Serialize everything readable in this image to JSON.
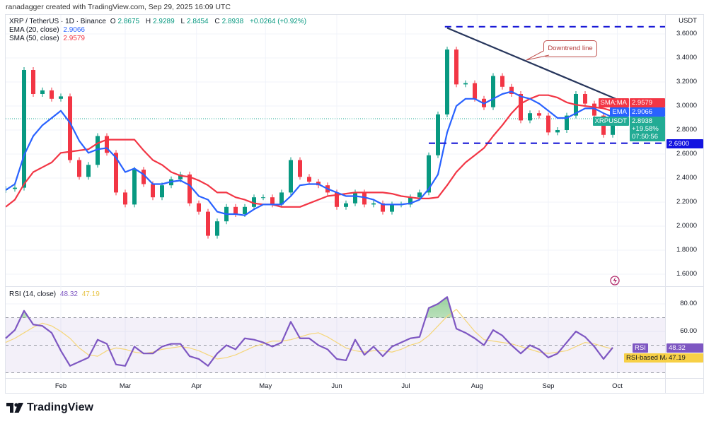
{
  "credit": "ranadagger created with TradingView.com, Sep 29, 2025 16:09 UTC",
  "legend": {
    "symbol": "XRP / TetherUS · 1D · Binance",
    "open_label": "O",
    "open": "2.8675",
    "high_label": "H",
    "high": "2.9289",
    "low_label": "L",
    "low": "2.8454",
    "close_label": "C",
    "close": "2.8938",
    "change": "+0.0264 (+0.92%)",
    "ema_label": "EMA (20, close)",
    "ema_value": "2.9066",
    "sma_label": "SMA (50, close)",
    "sma_value": "2.9579",
    "rsi_label": "RSI (14, close)",
    "rsi_value": "48.32",
    "rsi_ma_value": "47.19"
  },
  "price_axis": {
    "currency": "USDT",
    "ticks": [
      "3.6000",
      "3.4000",
      "3.2000",
      "3.0000",
      "2.8000",
      "2.6000",
      "2.4000",
      "2.2000",
      "2.0000",
      "1.8000",
      "1.6000"
    ],
    "tags": {
      "sma_name": "SMA:MA",
      "sma": "2.9579",
      "ema_name": "EMA",
      "ema": "2.9066",
      "symbol_name": "XRPUSDT",
      "last": "2.8938",
      "pct": "+19.58%",
      "countdown": "07:50:56",
      "support": "2.6900"
    }
  },
  "rsi_axis": {
    "ticks": [
      "80.00",
      "60.00"
    ],
    "tags": {
      "rsi_name": "RSI",
      "rsi": "48.32",
      "ma_name": "RSI-based MA",
      "ma": "47.19"
    }
  },
  "x_axis": {
    "ticks": [
      "Feb",
      "Mar",
      "Apr",
      "May",
      "Jun",
      "Jul",
      "Aug",
      "Sep",
      "Oct"
    ]
  },
  "annotation": {
    "text": "Downtrend line"
  },
  "logo_text": "TradingView",
  "colors": {
    "up": "#089981",
    "down": "#f23645",
    "ema": "#2962ff",
    "sma": "#f23645",
    "rsi": "#7e57c2",
    "rsi_ma": "#f5d67a",
    "levels": "#1a1ad6",
    "trendline": "#27365c"
  },
  "chart_data": [
    {
      "type": "candlestick",
      "title": "XRP / TetherUS · 1D · Binance",
      "ylabel": "USDT",
      "ylim": [
        1.55,
        3.75
      ],
      "grid": true,
      "year": 2025,
      "dates": [
        "01-08",
        "01-12",
        "01-16",
        "01-20",
        "01-24",
        "01-28",
        "02-01",
        "02-05",
        "02-09",
        "02-13",
        "02-17",
        "02-21",
        "02-25",
        "03-01",
        "03-05",
        "03-09",
        "03-13",
        "03-17",
        "03-21",
        "03-25",
        "03-29",
        "04-02",
        "04-06",
        "04-10",
        "04-14",
        "04-18",
        "04-22",
        "04-26",
        "04-30",
        "05-04",
        "05-08",
        "05-12",
        "05-16",
        "05-20",
        "05-24",
        "05-28",
        "06-01",
        "06-05",
        "06-09",
        "06-13",
        "06-17",
        "06-21",
        "06-25",
        "06-29",
        "07-03",
        "07-07",
        "07-11",
        "07-15",
        "07-19",
        "07-23",
        "07-27",
        "07-31",
        "08-04",
        "08-08",
        "08-12",
        "08-16",
        "08-20",
        "08-24",
        "08-28",
        "09-01",
        "09-05",
        "09-09",
        "09-13",
        "09-17",
        "09-21",
        "09-25",
        "09-29"
      ],
      "close": [
        2.31,
        2.32,
        3.3,
        3.1,
        3.13,
        3.06,
        3.08,
        2.55,
        2.41,
        2.51,
        2.75,
        2.61,
        2.28,
        2.18,
        2.47,
        2.35,
        2.24,
        2.34,
        2.39,
        2.43,
        2.19,
        2.12,
        1.92,
        2.04,
        2.16,
        2.1,
        2.16,
        2.24,
        2.24,
        2.18,
        2.28,
        2.55,
        2.41,
        2.37,
        2.34,
        2.28,
        2.16,
        2.19,
        2.28,
        2.18,
        2.19,
        2.12,
        2.18,
        2.18,
        2.24,
        2.28,
        2.59,
        2.93,
        3.47,
        3.18,
        3.19,
        3.06,
        2.99,
        3.25,
        3.16,
        3.1,
        2.88,
        2.94,
        2.92,
        2.78,
        2.8,
        2.92,
        3.1,
        3.02,
        2.92,
        2.76,
        2.8938
      ],
      "series": [
        {
          "name": "EMA (20, close)",
          "values": [
            2.3,
            2.35,
            2.59,
            2.75,
            2.84,
            2.9,
            2.96,
            2.86,
            2.71,
            2.61,
            2.64,
            2.65,
            2.57,
            2.45,
            2.48,
            2.43,
            2.35,
            2.35,
            2.37,
            2.38,
            2.34,
            2.25,
            2.22,
            2.12,
            2.1,
            2.1,
            2.09,
            2.14,
            2.18,
            2.18,
            2.18,
            2.25,
            2.34,
            2.35,
            2.35,
            2.31,
            2.28,
            2.25,
            2.25,
            2.24,
            2.22,
            2.18,
            2.18,
            2.18,
            2.19,
            2.22,
            2.31,
            2.43,
            2.78,
            3.0,
            3.06,
            3.06,
            3.02,
            3.06,
            3.1,
            3.12,
            3.08,
            3.06,
            3.02,
            2.96,
            2.9,
            2.9,
            2.94,
            2.98,
            2.98,
            2.94,
            2.9066
          ]
        },
        {
          "name": "SMA (50, close)",
          "values": [
            2.16,
            2.22,
            2.35,
            2.45,
            2.49,
            2.53,
            2.61,
            2.62,
            2.63,
            2.64,
            2.69,
            2.72,
            2.72,
            2.72,
            2.72,
            2.63,
            2.55,
            2.51,
            2.45,
            2.42,
            2.41,
            2.38,
            2.34,
            2.28,
            2.28,
            2.24,
            2.22,
            2.19,
            2.18,
            2.18,
            2.16,
            2.16,
            2.16,
            2.19,
            2.22,
            2.25,
            2.26,
            2.27,
            2.28,
            2.28,
            2.28,
            2.28,
            2.27,
            2.25,
            2.24,
            2.23,
            2.23,
            2.24,
            2.34,
            2.45,
            2.53,
            2.59,
            2.65,
            2.75,
            2.84,
            2.94,
            3.02,
            3.06,
            3.09,
            3.09,
            3.07,
            3.03,
            3.01,
            3.0,
            2.99,
            2.98,
            2.9579
          ]
        }
      ],
      "levels": [
        {
          "price": 3.66,
          "style": "dashed",
          "from": "07-18"
        },
        {
          "price": 2.69,
          "style": "dashed",
          "from": "07-11",
          "label": "2.6900"
        }
      ],
      "trendline": {
        "label": "Downtrend line",
        "start": {
          "date": "07-19",
          "price": 3.65
        },
        "end": {
          "date": "10-04",
          "price": 3.03
        }
      }
    },
    {
      "type": "line",
      "title": "RSI (14, close)",
      "ylim": [
        22,
        95
      ],
      "bands": [
        30,
        50,
        70
      ],
      "series": [
        {
          "name": "RSI",
          "values": [
            55,
            61,
            75,
            65,
            64,
            59,
            46,
            35,
            38,
            41,
            54,
            51,
            36,
            35,
            49,
            44,
            44,
            49,
            51,
            51,
            42,
            40,
            35,
            44,
            50,
            47,
            55,
            54,
            52,
            49,
            52,
            67,
            55,
            55,
            50,
            47,
            40,
            39,
            54,
            43,
            49,
            42,
            49,
            52,
            55,
            56,
            77,
            80,
            85,
            62,
            59,
            55,
            50,
            61,
            57,
            50,
            44,
            50,
            47,
            41,
            44,
            52,
            60,
            56,
            49,
            40,
            48.32
          ]
        },
        {
          "name": "RSI-based MA",
          "values": [
            52,
            55,
            59,
            63,
            66,
            64,
            60,
            55,
            48,
            43,
            42,
            46,
            48,
            47,
            45,
            44,
            45,
            47,
            48,
            49,
            48,
            46,
            43,
            40,
            41,
            43,
            46,
            49,
            51,
            53,
            53,
            54,
            56,
            58,
            59,
            56,
            52,
            48,
            46,
            45,
            46,
            46,
            45,
            47,
            50,
            52,
            57,
            64,
            71,
            76,
            68,
            60,
            54,
            53,
            52,
            51,
            49,
            47,
            45,
            44,
            45,
            46,
            49,
            52,
            51,
            49,
            47.19
          ]
        }
      ]
    }
  ]
}
